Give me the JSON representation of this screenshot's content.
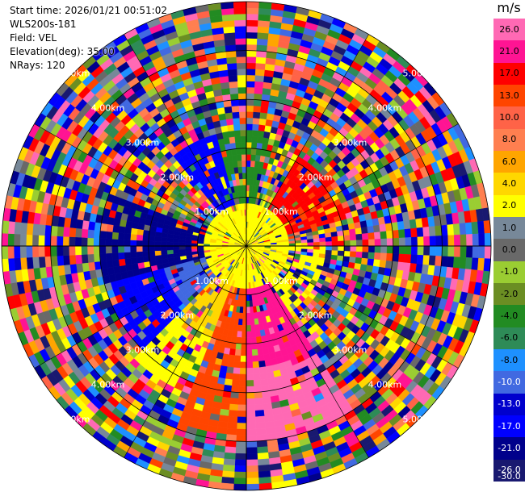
{
  "header": {
    "start_time": "Start time: 2026/01/21 00:51:02",
    "instrument": "WLS200s-181",
    "field": "Field: VEL",
    "elevation": "Elevation(deg): 35.00",
    "nrays": "NRays: 120"
  },
  "colorbar": {
    "title": "m/s",
    "ticks": [
      "26.0",
      "21.0",
      "17.0",
      "13.0",
      "10.0",
      "8.0",
      "6.0",
      "4.0",
      "2.0",
      "1.0",
      "0.0",
      "-1.0",
      "-2.0",
      "-4.0",
      "-6.0",
      "-8.0",
      "-10.0",
      "-13.0",
      "-17.0",
      "-21.0",
      "-26.0",
      "-30.0"
    ],
    "colors": [
      "#ff69b4",
      "#ff1493",
      "#ff0000",
      "#ff4500",
      "#ff6347",
      "#ff7f50",
      "#ffa500",
      "#ffd700",
      "#ffff00",
      "#778899",
      "#696969",
      "#9acd32",
      "#6b8e23",
      "#228b22",
      "#2e8b57",
      "#1e90ff",
      "#4169e1",
      "#0000cd",
      "#0000ff",
      "#00008b",
      "#191970"
    ]
  },
  "chart_data": {
    "type": "heatmap",
    "projection": "polar-ppi",
    "field": "VEL",
    "units": "m/s",
    "n_rays": 120,
    "elevation_deg": 35.0,
    "range_max_km": 5.0,
    "range_rings_km": [
      1.0,
      2.0,
      3.0,
      4.0,
      5.0
    ],
    "ring_labels": [
      "1.00km",
      "2.00km",
      "3.00km",
      "4.00km",
      "5.00km"
    ],
    "value_range": [
      -30.0,
      30.0
    ],
    "dominant_regions": [
      {
        "sector": "near-center (0-1 km)",
        "value_approx": 2.0
      },
      {
        "sector": "north (within 2 km)",
        "value_approx": -6.0
      },
      {
        "sector": "north-northwest (within 2 km)",
        "value_approx": -17.0
      },
      {
        "sector": "northeast (1-2 km)",
        "value_approx": 17.0
      },
      {
        "sector": "west (within 3 km)",
        "value_approx": -26.0
      },
      {
        "sector": "southwest (1-3 km)",
        "value_approx": -10.0
      },
      {
        "sector": "south (1.5-4 km)",
        "value_approx": 13.0
      },
      {
        "sector": "south-southeast (1.5-4 km)",
        "value_approx": 21.0
      },
      {
        "sector": "beyond 3-4 km",
        "value_approx": "noise"
      }
    ]
  }
}
